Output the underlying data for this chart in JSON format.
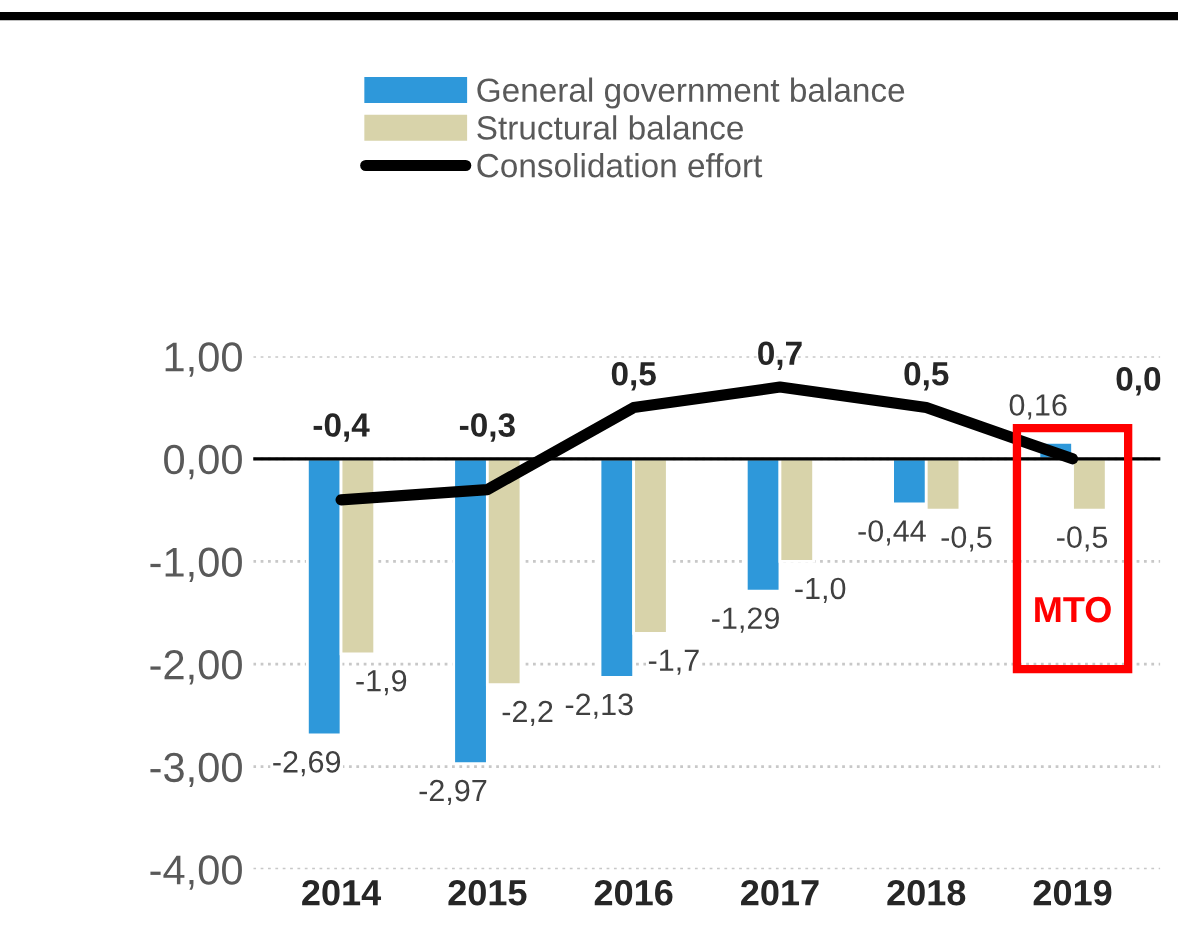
{
  "chart_data": {
    "type": "bar",
    "categories": [
      "2014",
      "2015",
      "2016",
      "2017",
      "2018",
      "2019"
    ],
    "series": [
      {
        "name": "General government balance",
        "color": "#2e98da",
        "values": [
          -2.69,
          -2.97,
          -2.13,
          -1.29,
          -0.44,
          0.16
        ],
        "value_labels": [
          "-2,69",
          "-2,97",
          "-2,13",
          "-1,29",
          "-0,44",
          "0,16"
        ]
      },
      {
        "name": "Structural balance",
        "color": "#d8d3aa",
        "values": [
          -1.9,
          -2.2,
          -1.7,
          -1.0,
          -0.5,
          -0.5
        ],
        "value_labels": [
          "-1,9",
          "-2,2",
          "-1,7",
          "-1,0",
          "-0,5",
          "-0,5"
        ]
      },
      {
        "name": "Consolidation effort",
        "type": "line",
        "color": "#000000",
        "values": [
          -0.4,
          -0.3,
          0.5,
          0.7,
          0.5,
          0.0
        ],
        "value_labels": [
          "-0,4",
          "-0,3",
          "0,5",
          "0,7",
          "0,5",
          "0,0"
        ]
      }
    ],
    "ylim": [
      -4,
      1
    ],
    "yticks": [
      {
        "value": -4,
        "label": "-4,00"
      },
      {
        "value": -3,
        "label": "-3,00"
      },
      {
        "value": -2,
        "label": "-2,00"
      },
      {
        "value": -1,
        "label": "-1,00"
      },
      {
        "value": 0,
        "label": "0,00"
      },
      {
        "value": 1,
        "label": "1,00"
      }
    ],
    "ref_lines": [
      {
        "axis": "y",
        "value": 0,
        "color": "#000000"
      }
    ],
    "annotations": [
      "MTO"
    ],
    "grid": "y",
    "legend": "top",
    "marker": "none",
    "line_style": "solid"
  }
}
